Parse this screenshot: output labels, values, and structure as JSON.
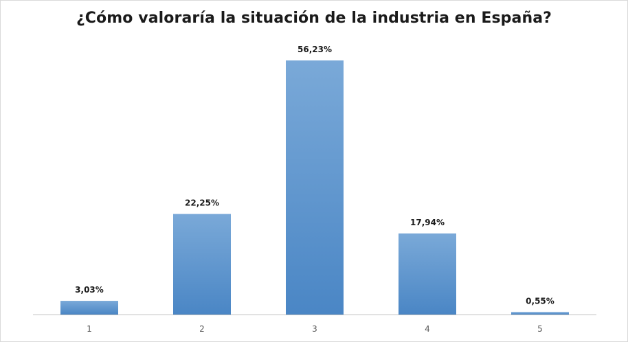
{
  "chart_data": {
    "type": "bar",
    "title": "¿Cómo valoraría la situación de la industria en España?",
    "categories": [
      "1",
      "2",
      "3",
      "4",
      "5"
    ],
    "values": [
      3.03,
      22.25,
      56.23,
      17.94,
      0.55
    ],
    "data_labels": [
      "3,03%",
      "22,25%",
      "56,23%",
      "17,94%",
      "0,55%"
    ],
    "xlabel": "",
    "ylabel": "",
    "ylim": [
      0,
      56.23
    ],
    "grid": false,
    "legend": "none",
    "bar_color": "#5b9bd5"
  }
}
